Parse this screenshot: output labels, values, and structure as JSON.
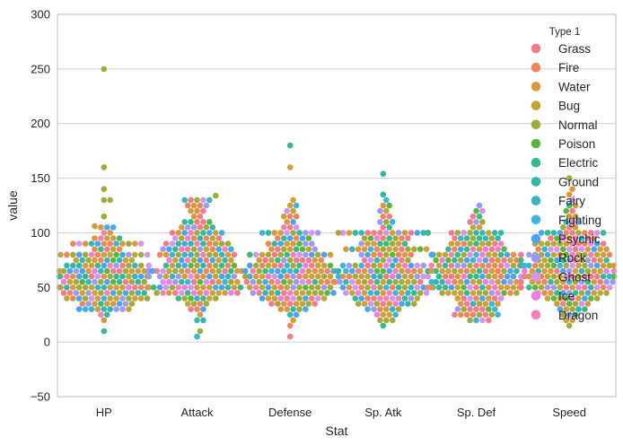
{
  "chart_data": {
    "type": "scatter",
    "subtype": "swarm",
    "title": "",
    "xlabel": "Stat",
    "ylabel": "value",
    "ylim": [
      -50,
      300
    ],
    "yticks": [
      -50,
      0,
      50,
      100,
      150,
      200,
      250,
      300
    ],
    "grid": true,
    "categories": [
      "HP",
      "Attack",
      "Defense",
      "Sp. Atk",
      "Sp. Def",
      "Speed"
    ],
    "legend": {
      "title": "Type 1",
      "placement": "top-right",
      "entries": [
        {
          "name": "Grass",
          "color": "#f37b8b"
        },
        {
          "name": "Fire",
          "color": "#f0845a"
        },
        {
          "name": "Water",
          "color": "#d99a3d"
        },
        {
          "name": "Bug",
          "color": "#c2a53a"
        },
        {
          "name": "Normal",
          "color": "#a2ab3a"
        },
        {
          "name": "Poison",
          "color": "#5bb73c"
        },
        {
          "name": "Electric",
          "color": "#34bb87"
        },
        {
          "name": "Ground",
          "color": "#33b7a4"
        },
        {
          "name": "Fairy",
          "color": "#35b5be"
        },
        {
          "name": "Fighting",
          "color": "#3cb4dc"
        },
        {
          "name": "Psychic",
          "color": "#4ba2f0"
        },
        {
          "name": "Rock",
          "color": "#9d9af3"
        },
        {
          "name": "Ghost",
          "color": "#d494ef"
        },
        {
          "name": "Ice",
          "color": "#f27be0"
        },
        {
          "name": "Dragon",
          "color": "#f47fb9"
        }
      ]
    },
    "series": [
      {
        "category": "HP",
        "values": [
          250,
          160,
          140,
          130,
          130,
          115,
          105,
          105,
          106,
          105,
          100,
          100,
          95,
          95,
          95,
          95,
          95,
          90,
          90,
          90,
          90,
          90,
          90,
          90,
          90,
          90,
          90,
          90,
          90,
          85,
          85,
          85,
          85,
          85,
          80,
          80,
          80,
          80,
          80,
          80,
          80,
          80,
          80,
          80,
          80,
          80,
          80,
          80,
          80,
          75,
          75,
          75,
          75,
          75,
          75,
          75,
          75,
          75,
          75,
          70,
          70,
          70,
          70,
          70,
          70,
          70,
          70,
          70,
          70,
          70,
          70,
          70,
          70,
          65,
          65,
          65,
          65,
          65,
          65,
          65,
          65,
          65,
          65,
          65,
          65,
          65,
          65,
          65,
          65,
          65,
          65,
          60,
          60,
          60,
          60,
          60,
          60,
          60,
          60,
          60,
          60,
          60,
          60,
          60,
          60,
          60,
          60,
          60,
          60,
          55,
          55,
          55,
          55,
          55,
          55,
          55,
          55,
          55,
          55,
          55,
          55,
          55,
          55,
          50,
          50,
          50,
          50,
          50,
          50,
          50,
          50,
          50,
          50,
          50,
          50,
          50,
          50,
          50,
          50,
          50,
          50,
          45,
          45,
          45,
          45,
          45,
          45,
          45,
          45,
          45,
          45,
          45,
          45,
          45,
          45,
          40,
          40,
          40,
          40,
          40,
          40,
          40,
          40,
          40,
          40,
          40,
          40,
          40,
          40,
          35,
          35,
          35,
          35,
          35,
          35,
          35,
          35,
          35,
          30,
          30,
          30,
          30,
          30,
          30,
          30,
          30,
          30,
          25,
          25,
          20,
          10
        ]
      },
      {
        "category": "Attack",
        "values": [
          134,
          130,
          130,
          130,
          130,
          130,
          125,
          125,
          125,
          125,
          120,
          120,
          120,
          115,
          115,
          110,
          110,
          110,
          110,
          110,
          105,
          105,
          105,
          105,
          105,
          105,
          100,
          100,
          100,
          100,
          100,
          100,
          100,
          100,
          100,
          95,
          95,
          95,
          95,
          95,
          95,
          95,
          95,
          90,
          90,
          90,
          90,
          90,
          90,
          90,
          90,
          90,
          90,
          90,
          85,
          85,
          85,
          85,
          85,
          85,
          85,
          85,
          85,
          85,
          85,
          85,
          80,
          80,
          80,
          80,
          80,
          80,
          80,
          80,
          80,
          80,
          80,
          80,
          80,
          75,
          75,
          75,
          75,
          75,
          75,
          75,
          75,
          75,
          75,
          75,
          70,
          70,
          70,
          70,
          70,
          70,
          70,
          70,
          70,
          70,
          70,
          70,
          65,
          65,
          65,
          65,
          65,
          65,
          65,
          65,
          65,
          65,
          65,
          65,
          65,
          65,
          65,
          65,
          60,
          60,
          60,
          60,
          60,
          60,
          60,
          60,
          60,
          60,
          60,
          60,
          60,
          55,
          55,
          55,
          55,
          55,
          55,
          55,
          55,
          55,
          55,
          55,
          55,
          55,
          50,
          50,
          50,
          50,
          50,
          50,
          50,
          50,
          50,
          50,
          50,
          50,
          50,
          50,
          50,
          45,
          45,
          45,
          45,
          45,
          45,
          45,
          45,
          45,
          45,
          45,
          45,
          45,
          45,
          40,
          40,
          40,
          40,
          40,
          40,
          40,
          35,
          35,
          35,
          35,
          30,
          30,
          30,
          25,
          20,
          20,
          10,
          5
        ]
      },
      {
        "category": "Defense",
        "values": [
          180,
          160,
          130,
          125,
          125,
          120,
          120,
          115,
          115,
          115,
          110,
          110,
          105,
          105,
          105,
          100,
          100,
          100,
          100,
          100,
          100,
          100,
          100,
          100,
          100,
          95,
          95,
          95,
          95,
          95,
          95,
          90,
          90,
          90,
          90,
          90,
          90,
          90,
          90,
          85,
          85,
          85,
          85,
          85,
          85,
          85,
          85,
          80,
          80,
          80,
          80,
          80,
          80,
          80,
          80,
          80,
          80,
          80,
          80,
          80,
          80,
          75,
          75,
          75,
          75,
          75,
          75,
          75,
          75,
          75,
          75,
          75,
          70,
          70,
          70,
          70,
          70,
          70,
          70,
          70,
          70,
          70,
          70,
          70,
          70,
          70,
          65,
          65,
          65,
          65,
          65,
          65,
          65,
          65,
          65,
          65,
          65,
          65,
          65,
          65,
          65,
          65,
          60,
          60,
          60,
          60,
          60,
          60,
          60,
          60,
          60,
          60,
          60,
          60,
          60,
          60,
          60,
          55,
          55,
          55,
          55,
          55,
          55,
          55,
          55,
          55,
          55,
          55,
          55,
          55,
          55,
          55,
          55,
          50,
          50,
          50,
          50,
          50,
          50,
          50,
          50,
          50,
          50,
          50,
          50,
          50,
          50,
          45,
          45,
          45,
          45,
          45,
          45,
          45,
          45,
          45,
          45,
          45,
          45,
          45,
          45,
          40,
          40,
          40,
          40,
          40,
          40,
          40,
          40,
          40,
          40,
          40,
          35,
          35,
          35,
          35,
          35,
          35,
          35,
          35,
          30,
          30,
          30,
          30,
          30,
          25,
          25,
          20,
          15,
          5
        ]
      },
      {
        "category": "Sp. Atk",
        "values": [
          154,
          135,
          130,
          125,
          125,
          120,
          120,
          115,
          115,
          110,
          110,
          110,
          105,
          105,
          100,
          100,
          100,
          100,
          100,
          100,
          100,
          100,
          100,
          100,
          100,
          100,
          100,
          100,
          100,
          100,
          100,
          95,
          95,
          95,
          95,
          95,
          95,
          95,
          95,
          90,
          90,
          90,
          90,
          90,
          90,
          90,
          90,
          85,
          85,
          85,
          85,
          85,
          85,
          85,
          85,
          85,
          85,
          85,
          85,
          85,
          85,
          80,
          80,
          80,
          80,
          80,
          80,
          80,
          80,
          80,
          75,
          75,
          75,
          75,
          75,
          75,
          75,
          75,
          70,
          70,
          70,
          70,
          70,
          70,
          70,
          70,
          70,
          70,
          70,
          70,
          70,
          70,
          65,
          65,
          65,
          65,
          65,
          65,
          65,
          65,
          65,
          65,
          65,
          65,
          65,
          65,
          65,
          65,
          65,
          65,
          60,
          60,
          60,
          60,
          60,
          60,
          60,
          60,
          60,
          60,
          60,
          60,
          60,
          60,
          60,
          60,
          55,
          55,
          55,
          55,
          55,
          55,
          55,
          55,
          55,
          55,
          55,
          55,
          55,
          55,
          50,
          50,
          50,
          50,
          50,
          50,
          50,
          50,
          50,
          50,
          50,
          50,
          50,
          50,
          50,
          45,
          45,
          45,
          45,
          45,
          45,
          45,
          45,
          45,
          45,
          45,
          45,
          45,
          45,
          40,
          40,
          40,
          40,
          40,
          40,
          40,
          40,
          40,
          40,
          40,
          35,
          35,
          35,
          35,
          35,
          35,
          35,
          35,
          35,
          35,
          30,
          30,
          30,
          30,
          30,
          30,
          25,
          25,
          25,
          25,
          20,
          20,
          20,
          15
        ]
      },
      {
        "category": "Sp. Def",
        "values": [
          125,
          120,
          120,
          115,
          115,
          110,
          110,
          110,
          105,
          105,
          100,
          100,
          100,
          100,
          100,
          100,
          100,
          100,
          100,
          95,
          95,
          95,
          95,
          95,
          95,
          95,
          95,
          90,
          90,
          90,
          90,
          90,
          90,
          90,
          90,
          90,
          85,
          85,
          85,
          85,
          85,
          85,
          85,
          85,
          85,
          85,
          80,
          80,
          80,
          80,
          80,
          80,
          80,
          80,
          80,
          80,
          80,
          80,
          80,
          80,
          80,
          80,
          75,
          75,
          75,
          75,
          75,
          75,
          75,
          75,
          75,
          75,
          75,
          75,
          75,
          75,
          75,
          70,
          70,
          70,
          70,
          70,
          70,
          70,
          70,
          70,
          70,
          70,
          70,
          70,
          70,
          70,
          70,
          70,
          70,
          65,
          65,
          65,
          65,
          65,
          65,
          65,
          65,
          65,
          65,
          65,
          65,
          65,
          65,
          65,
          60,
          60,
          60,
          60,
          60,
          60,
          60,
          60,
          60,
          60,
          60,
          60,
          60,
          60,
          55,
          55,
          55,
          55,
          55,
          55,
          55,
          55,
          55,
          55,
          55,
          55,
          55,
          55,
          55,
          55,
          55,
          55,
          50,
          50,
          50,
          50,
          50,
          50,
          50,
          50,
          50,
          50,
          50,
          50,
          50,
          50,
          50,
          50,
          50,
          50,
          50,
          45,
          45,
          45,
          45,
          45,
          45,
          45,
          45,
          45,
          45,
          45,
          45,
          45,
          40,
          40,
          40,
          40,
          40,
          40,
          40,
          40,
          35,
          35,
          35,
          35,
          35,
          35,
          35,
          30,
          30,
          30,
          30,
          30,
          30,
          30,
          25,
          25,
          25,
          25,
          25,
          25,
          25,
          25,
          20,
          20,
          20,
          20
        ]
      },
      {
        "category": "Speed",
        "values": [
          150,
          140,
          135,
          130,
          125,
          125,
          120,
          120,
          115,
          115,
          110,
          110,
          110,
          105,
          105,
          105,
          100,
          100,
          100,
          100,
          100,
          100,
          100,
          100,
          100,
          100,
          100,
          95,
          95,
          95,
          95,
          95,
          95,
          95,
          95,
          90,
          90,
          90,
          90,
          90,
          90,
          90,
          90,
          90,
          90,
          90,
          90,
          85,
          85,
          85,
          85,
          85,
          85,
          85,
          85,
          85,
          85,
          85,
          85,
          80,
          80,
          80,
          80,
          80,
          80,
          80,
          80,
          80,
          80,
          80,
          80,
          80,
          80,
          75,
          75,
          75,
          75,
          75,
          75,
          75,
          75,
          75,
          75,
          75,
          75,
          70,
          70,
          70,
          70,
          70,
          70,
          70,
          70,
          70,
          70,
          70,
          70,
          70,
          70,
          70,
          70,
          65,
          65,
          65,
          65,
          65,
          65,
          65,
          65,
          65,
          65,
          65,
          65,
          65,
          65,
          65,
          60,
          60,
          60,
          60,
          60,
          60,
          60,
          60,
          60,
          60,
          60,
          60,
          60,
          60,
          60,
          60,
          60,
          55,
          55,
          55,
          55,
          55,
          55,
          55,
          55,
          55,
          55,
          55,
          55,
          55,
          55,
          50,
          50,
          50,
          50,
          50,
          50,
          50,
          50,
          50,
          50,
          50,
          50,
          50,
          50,
          45,
          45,
          45,
          45,
          45,
          45,
          45,
          45,
          45,
          45,
          45,
          45,
          40,
          40,
          40,
          40,
          40,
          40,
          40,
          40,
          40,
          35,
          35,
          35,
          35,
          35,
          35,
          30,
          30,
          30,
          30,
          30,
          25,
          25,
          25,
          20,
          20,
          15
        ]
      }
    ]
  }
}
